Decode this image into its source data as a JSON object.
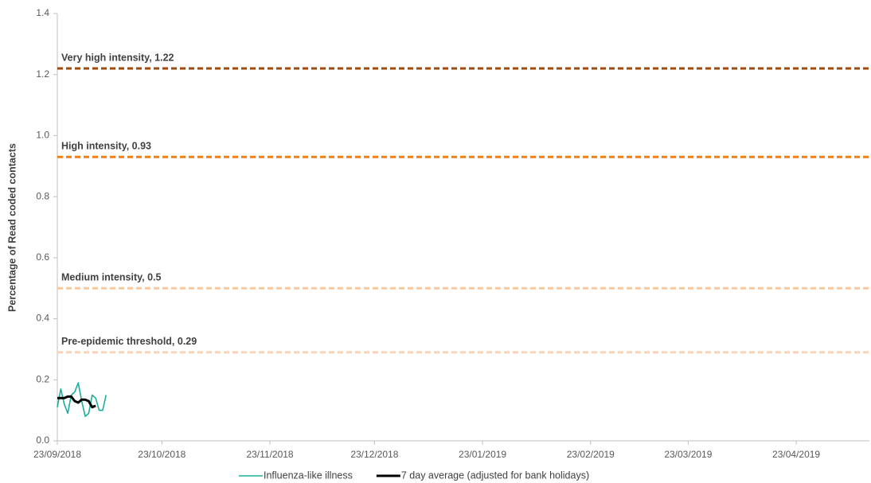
{
  "chart_data": {
    "type": "line",
    "y_label": "Percentage of Read coded contacts",
    "x": [
      "2018-09-23",
      "2018-09-24",
      "2018-09-25",
      "2018-09-26",
      "2018-09-27",
      "2018-09-28",
      "2018-09-29",
      "2018-09-30",
      "2018-10-01",
      "2018-10-02",
      "2018-10-03",
      "2018-10-04",
      "2018-10-05",
      "2018-10-06",
      "2018-10-07"
    ],
    "series": [
      {
        "name": "Influenza-like illness",
        "color": "#1aae9f",
        "width": 1.6,
        "values": [
          0.11,
          0.17,
          0.12,
          0.09,
          0.15,
          0.16,
          0.19,
          0.13,
          0.08,
          0.09,
          0.15,
          0.14,
          0.1,
          0.1,
          0.15
        ]
      },
      {
        "name": "7 day average (adjusted for bank holidays)",
        "color": "#000000",
        "width": 3,
        "values": [
          0.14,
          0.14,
          0.14,
          0.145,
          0.145,
          0.13,
          0.125,
          0.135,
          0.135,
          0.13,
          0.11,
          0.115,
          null,
          null,
          null
        ]
      }
    ],
    "thresholds": [
      {
        "label": "Very high intensity, 1.22",
        "value": 1.22,
        "color": "#9c4a0e"
      },
      {
        "label": "High intensity, 0.93",
        "value": 0.93,
        "color": "#f07f15"
      },
      {
        "label": "Medium intensity, 0.5",
        "value": 0.5,
        "color": "#fbc79b"
      },
      {
        "label": "Pre-epidemic threshold, 0.29",
        "value": 0.29,
        "color": "#fad3b8"
      }
    ],
    "xlim": [
      "2018-09-23",
      "2019-05-14"
    ],
    "xticks": [
      {
        "value": "2018-09-23",
        "label": "23/09/2018"
      },
      {
        "value": "2018-10-23",
        "label": "23/10/2018"
      },
      {
        "value": "2018-11-23",
        "label": "23/11/2018"
      },
      {
        "value": "2018-12-23",
        "label": "23/12/2018"
      },
      {
        "value": "2019-01-23",
        "label": "23/01/2019"
      },
      {
        "value": "2019-02-23",
        "label": "23/02/2019"
      },
      {
        "value": "2019-03-23",
        "label": "23/03/2019"
      },
      {
        "value": "2019-04-23",
        "label": "23/04/2019"
      }
    ],
    "ylim": [
      0,
      1.4
    ],
    "yticks": [
      {
        "value": 0,
        "label": "0.0"
      },
      0.2,
      0.4,
      0.6,
      0.8,
      {
        "value": 1,
        "label": "1.0"
      },
      1.2,
      1.4
    ],
    "legend": "bottom"
  }
}
